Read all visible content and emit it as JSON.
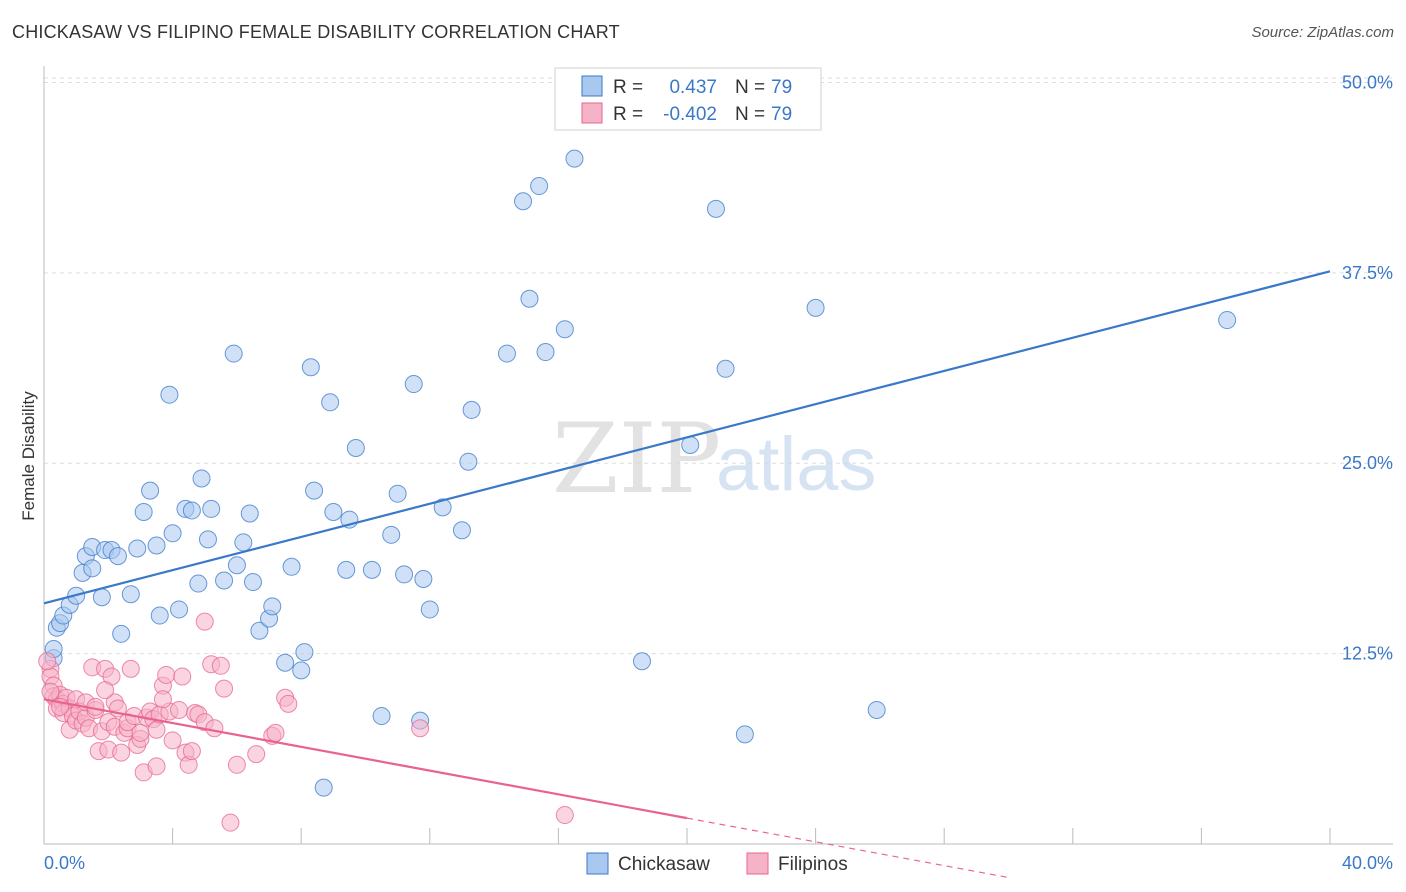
{
  "title": "CHICKASAW VS FILIPINO FEMALE DISABILITY CORRELATION CHART",
  "source": "Source: ZipAtlas.com",
  "colors": {
    "blue": "#3a78c9",
    "blue_fill": "#a9c8f0",
    "pink": "#e8648f",
    "pink_fill": "#f5b3c8",
    "grid": "#dddddd"
  },
  "watermark": {
    "zip": "ZIP",
    "atlas": "atlas"
  },
  "legend": {
    "rows": [
      {
        "r_label": "R =",
        "r_value": "0.437",
        "n_label": "N =",
        "n_value": "79"
      },
      {
        "r_label": "R =",
        "r_value": "-0.402",
        "n_label": "N =",
        "n_value": "79"
      }
    ]
  },
  "chart_data": {
    "type": "scatter",
    "ylabel": "Female Disability",
    "xlim": [
      0,
      40
    ],
    "ylim": [
      0,
      52
    ],
    "x_tick_labels": [
      "0.0%",
      "40.0%"
    ],
    "y_ticks": [
      12.5,
      25,
      37.5,
      50
    ],
    "y_tick_labels": [
      "12.5%",
      "25.0%",
      "37.5%",
      "50.0%"
    ],
    "grid": true,
    "legend_position": "top-center",
    "series": [
      {
        "name": "Chickasaw",
        "color": "#3a78c9",
        "r": 0.437,
        "n": 79,
        "trend": {
          "x0": 0,
          "y0": 15.8,
          "x1": 40,
          "y1": 37.6,
          "dash_from": null
        },
        "points": [
          [
            0.3,
            12.2
          ],
          [
            0.3,
            12.8
          ],
          [
            0.4,
            14.2
          ],
          [
            0.5,
            14.5
          ],
          [
            0.6,
            15.0
          ],
          [
            0.8,
            15.7
          ],
          [
            1.0,
            16.3
          ],
          [
            1.2,
            17.8
          ],
          [
            1.3,
            18.9
          ],
          [
            1.5,
            19.5
          ],
          [
            1.5,
            18.1
          ],
          [
            1.8,
            16.2
          ],
          [
            1.9,
            19.3
          ],
          [
            2.1,
            19.3
          ],
          [
            2.3,
            18.9
          ],
          [
            2.4,
            13.8
          ],
          [
            2.7,
            16.4
          ],
          [
            2.9,
            19.4
          ],
          [
            3.1,
            21.8
          ],
          [
            3.3,
            23.2
          ],
          [
            3.5,
            19.6
          ],
          [
            3.6,
            15.0
          ],
          [
            3.9,
            29.5
          ],
          [
            4.0,
            20.4
          ],
          [
            4.2,
            15.4
          ],
          [
            4.4,
            22.0
          ],
          [
            4.6,
            21.9
          ],
          [
            4.8,
            17.1
          ],
          [
            4.9,
            24.0
          ],
          [
            5.1,
            20.0
          ],
          [
            5.2,
            22.0
          ],
          [
            5.6,
            17.3
          ],
          [
            5.9,
            32.2
          ],
          [
            6.0,
            18.3
          ],
          [
            6.2,
            19.8
          ],
          [
            6.4,
            21.7
          ],
          [
            6.5,
            17.2
          ],
          [
            6.7,
            14.0
          ],
          [
            7.0,
            14.8
          ],
          [
            7.1,
            15.6
          ],
          [
            7.5,
            11.9
          ],
          [
            7.7,
            18.2
          ],
          [
            8.0,
            11.4
          ],
          [
            8.1,
            12.6
          ],
          [
            8.3,
            31.3
          ],
          [
            8.4,
            23.2
          ],
          [
            8.7,
            3.7
          ],
          [
            8.9,
            29.0
          ],
          [
            9.0,
            21.8
          ],
          [
            9.4,
            18.0
          ],
          [
            9.5,
            21.3
          ],
          [
            9.7,
            26.0
          ],
          [
            10.2,
            18.0
          ],
          [
            10.5,
            8.4
          ],
          [
            10.8,
            20.3
          ],
          [
            11.0,
            23.0
          ],
          [
            11.2,
            17.7
          ],
          [
            11.5,
            30.2
          ],
          [
            11.7,
            8.1
          ],
          [
            11.8,
            17.4
          ],
          [
            12.0,
            15.4
          ],
          [
            12.4,
            22.1
          ],
          [
            13.0,
            20.6
          ],
          [
            13.2,
            25.1
          ],
          [
            13.3,
            28.5
          ],
          [
            14.4,
            32.2
          ],
          [
            14.9,
            42.2
          ],
          [
            15.1,
            35.8
          ],
          [
            15.4,
            43.2
          ],
          [
            15.6,
            32.3
          ],
          [
            16.2,
            33.8
          ],
          [
            16.5,
            45.0
          ],
          [
            18.6,
            12.0
          ],
          [
            20.1,
            26.2
          ],
          [
            20.9,
            41.7
          ],
          [
            21.2,
            31.2
          ],
          [
            21.8,
            7.2
          ],
          [
            24.0,
            35.2
          ],
          [
            25.9,
            8.8
          ],
          [
            36.8,
            34.4
          ]
        ]
      },
      {
        "name": "Filipinos",
        "color": "#e8648f",
        "r": -0.402,
        "n": 79,
        "trend": {
          "x0": 0,
          "y0": 9.5,
          "x1": 30,
          "y1": -2.2,
          "dash_from": 20.0
        },
        "points": [
          [
            0.2,
            11.5
          ],
          [
            0.2,
            11.0
          ],
          [
            0.3,
            10.4
          ],
          [
            0.3,
            9.7
          ],
          [
            0.4,
            9.5
          ],
          [
            0.4,
            8.9
          ],
          [
            0.5,
            9.8
          ],
          [
            0.6,
            9.2
          ],
          [
            0.6,
            8.6
          ],
          [
            0.7,
            9.6
          ],
          [
            0.8,
            8.9
          ],
          [
            0.8,
            7.5
          ],
          [
            0.9,
            8.4
          ],
          [
            1.0,
            9.5
          ],
          [
            1.0,
            8.1
          ],
          [
            1.1,
            8.7
          ],
          [
            1.2,
            7.9
          ],
          [
            1.3,
            8.3
          ],
          [
            1.3,
            9.3
          ],
          [
            1.4,
            7.6
          ],
          [
            1.5,
            11.6
          ],
          [
            1.6,
            8.8
          ],
          [
            1.6,
            9.0
          ],
          [
            1.7,
            6.1
          ],
          [
            1.8,
            7.4
          ],
          [
            1.9,
            11.5
          ],
          [
            2.0,
            8.0
          ],
          [
            2.0,
            6.2
          ],
          [
            2.1,
            11.0
          ],
          [
            2.2,
            7.7
          ],
          [
            2.2,
            9.3
          ],
          [
            2.3,
            8.9
          ],
          [
            2.4,
            6.0
          ],
          [
            2.5,
            7.3
          ],
          [
            2.6,
            7.6
          ],
          [
            2.6,
            8.0
          ],
          [
            2.7,
            11.5
          ],
          [
            2.8,
            8.4
          ],
          [
            2.9,
            6.5
          ],
          [
            3.0,
            6.9
          ],
          [
            3.0,
            7.3
          ],
          [
            3.1,
            4.7
          ],
          [
            3.2,
            8.3
          ],
          [
            3.3,
            8.7
          ],
          [
            3.4,
            8.2
          ],
          [
            3.5,
            7.5
          ],
          [
            3.5,
            5.1
          ],
          [
            3.6,
            8.5
          ],
          [
            3.7,
            10.4
          ],
          [
            3.8,
            11.1
          ],
          [
            3.9,
            8.7
          ],
          [
            4.0,
            6.8
          ],
          [
            4.2,
            8.8
          ],
          [
            4.3,
            11.0
          ],
          [
            4.4,
            6.0
          ],
          [
            4.5,
            5.2
          ],
          [
            4.6,
            6.1
          ],
          [
            4.7,
            8.6
          ],
          [
            4.8,
            8.5
          ],
          [
            5.0,
            8.0
          ],
          [
            5.0,
            14.6
          ],
          [
            5.2,
            11.8
          ],
          [
            5.5,
            11.7
          ],
          [
            5.6,
            10.2
          ],
          [
            5.8,
            1.4
          ],
          [
            6.0,
            5.2
          ],
          [
            6.6,
            5.9
          ],
          [
            7.1,
            7.1
          ],
          [
            7.2,
            7.3
          ],
          [
            7.5,
            9.6
          ],
          [
            7.6,
            9.2
          ],
          [
            11.7,
            7.6
          ],
          [
            16.2,
            1.9
          ],
          [
            0.1,
            12.0
          ],
          [
            0.2,
            10.0
          ],
          [
            0.5,
            9.0
          ],
          [
            1.9,
            10.1
          ],
          [
            3.7,
            9.5
          ],
          [
            5.3,
            7.6
          ]
        ]
      }
    ]
  }
}
